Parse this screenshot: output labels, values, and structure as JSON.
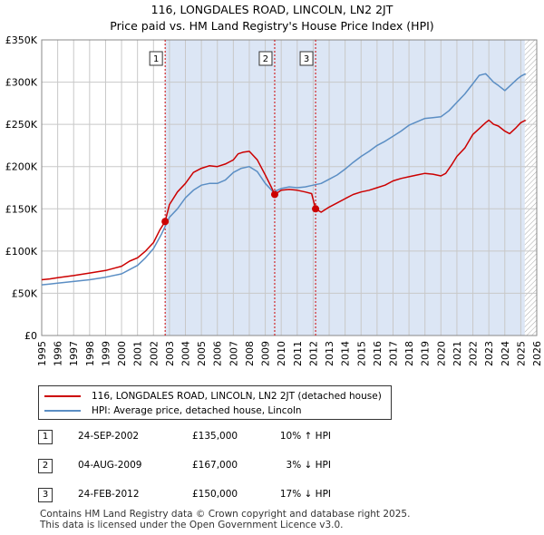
{
  "title_line1": "116, LONGDALES ROAD, LINCOLN, LN2 2JT",
  "title_line2": "Price paid vs. HM Land Registry's House Price Index (HPI)",
  "colors": {
    "property": "#cc0000",
    "hpi": "#5b8ec4",
    "shade": "#dce6f5",
    "grid": "#c8c8c8"
  },
  "chart_data": {
    "type": "line",
    "title": "116, LONGDALES ROAD, LINCOLN, LN2 2JT — Price paid vs. HM Land Registry's House Price Index (HPI)",
    "xlim": [
      1995,
      2026
    ],
    "ylim": [
      0,
      350000
    ],
    "x_ticks": [
      1995,
      1996,
      1997,
      1998,
      1999,
      2000,
      2001,
      2002,
      2003,
      2004,
      2005,
      2006,
      2007,
      2008,
      2009,
      2010,
      2011,
      2012,
      2013,
      2014,
      2015,
      2016,
      2017,
      2018,
      2019,
      2020,
      2021,
      2022,
      2023,
      2024,
      2025,
      2026
    ],
    "y_ticks": [
      0,
      50000,
      100000,
      150000,
      200000,
      250000,
      300000,
      350000
    ],
    "y_tick_labels": [
      "£0",
      "£50K",
      "£100K",
      "£150K",
      "£200K",
      "£250K",
      "£300K",
      "£350K"
    ],
    "shaded_from": 2002.73,
    "hatched_from": 2025.25,
    "series": [
      {
        "name": "116, LONGDALES ROAD, LINCOLN, LN2 2JT (detached house)",
        "x": [
          1995.0,
          1995.5,
          1996.0,
          1997.0,
          1998.0,
          1999.0,
          2000.0,
          2000.5,
          2001.0,
          2001.5,
          2002.0,
          2002.4,
          2002.73,
          2003.0,
          2003.5,
          2004.0,
          2004.5,
          2005.0,
          2005.5,
          2006.0,
          2006.5,
          2007.0,
          2007.3,
          2007.6,
          2008.0,
          2008.5,
          2009.0,
          2009.4,
          2009.59,
          2010.0,
          2010.5,
          2011.0,
          2011.5,
          2011.9,
          2012.15,
          2012.5,
          2013.0,
          2013.5,
          2014.0,
          2014.5,
          2015.0,
          2015.5,
          2016.0,
          2016.5,
          2017.0,
          2017.5,
          2018.0,
          2018.5,
          2019.0,
          2019.5,
          2020.0,
          2020.3,
          2020.7,
          2021.0,
          2021.5,
          2022.0,
          2022.4,
          2022.8,
          2023.0,
          2023.3,
          2023.6,
          2024.0,
          2024.3,
          2024.7,
          2025.0,
          2025.3
        ],
        "y": [
          66000,
          67000,
          68500,
          71000,
          74000,
          77000,
          82000,
          88000,
          92000,
          100000,
          110000,
          125000,
          135000,
          155000,
          170000,
          180000,
          193000,
          198000,
          201000,
          200000,
          203000,
          208000,
          215000,
          217000,
          218000,
          208000,
          190000,
          175000,
          167000,
          172000,
          173000,
          172000,
          170000,
          168000,
          150000,
          146000,
          152000,
          157000,
          162000,
          167000,
          170000,
          172000,
          175000,
          178000,
          183000,
          186000,
          188000,
          190000,
          192000,
          191000,
          189000,
          192000,
          203000,
          212000,
          222000,
          238000,
          245000,
          252000,
          255000,
          250000,
          248000,
          242000,
          239000,
          246000,
          252000,
          255000
        ]
      },
      {
        "name": "HPI: Average price, detached house, Lincoln",
        "x": [
          1995.0,
          1995.5,
          1996.0,
          1997.0,
          1998.0,
          1999.0,
          2000.0,
          2000.5,
          2001.0,
          2001.5,
          2002.0,
          2002.5,
          2003.0,
          2003.5,
          2004.0,
          2004.5,
          2005.0,
          2005.5,
          2006.0,
          2006.5,
          2007.0,
          2007.5,
          2008.0,
          2008.5,
          2009.0,
          2009.5,
          2010.0,
          2010.5,
          2011.0,
          2011.5,
          2012.0,
          2012.5,
          2013.0,
          2013.5,
          2014.0,
          2014.5,
          2015.0,
          2015.5,
          2016.0,
          2016.5,
          2017.0,
          2017.5,
          2018.0,
          2018.5,
          2019.0,
          2019.5,
          2020.0,
          2020.5,
          2021.0,
          2021.5,
          2022.0,
          2022.4,
          2022.8,
          2023.0,
          2023.3,
          2023.6,
          2024.0,
          2024.4,
          2024.8,
          2025.0,
          2025.3
        ],
        "y": [
          60000,
          61000,
          62000,
          64000,
          66000,
          69000,
          73000,
          78000,
          83000,
          92000,
          103000,
          120000,
          140000,
          150000,
          163000,
          172000,
          178000,
          180000,
          180000,
          184000,
          193000,
          198000,
          200000,
          194000,
          180000,
          170000,
          174000,
          176000,
          175000,
          176000,
          178000,
          180000,
          185000,
          190000,
          197000,
          205000,
          212000,
          218000,
          225000,
          230000,
          236000,
          242000,
          249000,
          253000,
          257000,
          258000,
          259000,
          266000,
          276000,
          286000,
          298000,
          308000,
          310000,
          306000,
          300000,
          296000,
          290000,
          297000,
          304000,
          307000,
          310000
        ]
      }
    ],
    "sales": [
      {
        "label": "1",
        "x": 2002.73,
        "y": 135000
      },
      {
        "label": "2",
        "x": 2009.59,
        "y": 167000
      },
      {
        "label": "3",
        "x": 2012.15,
        "y": 150000
      }
    ]
  },
  "legend": {
    "property": "116, LONGDALES ROAD, LINCOLN, LN2 2JT (detached house)",
    "hpi": "HPI: Average price, detached house, Lincoln"
  },
  "transactions": [
    {
      "num": "1",
      "date": "24-SEP-2002",
      "price": "£135,000",
      "hpi": "10% ↑ HPI"
    },
    {
      "num": "2",
      "date": "04-AUG-2009",
      "price": "£167,000",
      "hpi": "3% ↓ HPI"
    },
    {
      "num": "3",
      "date": "24-FEB-2012",
      "price": "£150,000",
      "hpi": "17% ↓ HPI"
    }
  ],
  "footer": {
    "line1": "Contains HM Land Registry data © Crown copyright and database right 2025.",
    "line2": "This data is licensed under the Open Government Licence v3.0."
  }
}
